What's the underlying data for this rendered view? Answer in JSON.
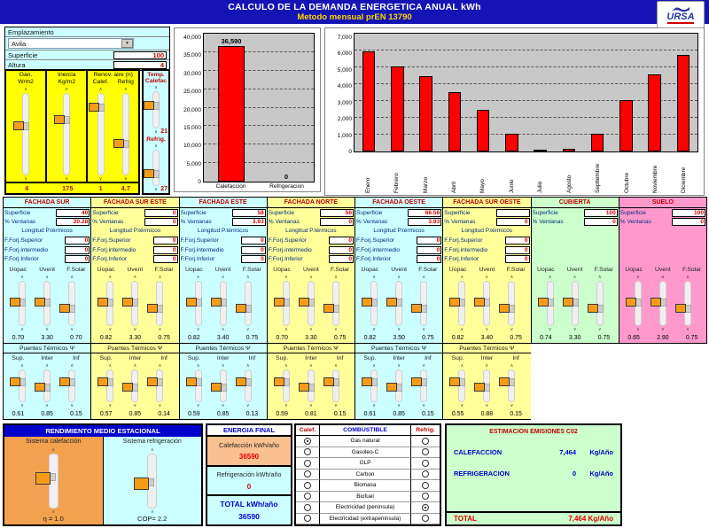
{
  "header": {
    "title": "CALCULO DE LA DEMANDA ENERGETICA ANUAL kWh",
    "subtitle": "Metodo mensual prEN 13790",
    "brand": "URSA"
  },
  "site": {
    "emplazamiento_label": "Emplazamiento",
    "emplazamiento_value": "Avila",
    "superficie_label": "Superficie",
    "superficie_value": "100",
    "altura_label": "Altura",
    "altura_value": "4"
  },
  "general_panel": {
    "col1_head": "Gan.",
    "col1_sub": "W/m2",
    "col1_value": "4",
    "col2_head": "Inercia",
    "col2_sub": "Kg/m2",
    "col2_value": "175",
    "renov_title": "Renov. aire (n)",
    "col3_head": "Calef.",
    "col3_value": "1",
    "col4_head": "Refrig",
    "col4_value": "4.7"
  },
  "temp_panel": {
    "title_line1": "Temp.",
    "title_line2": "Calefac",
    "calefac_value": "21",
    "refrig_label": "Refrig.",
    "refrig_value": "27"
  },
  "chart_data": [
    {
      "type": "bar",
      "categories": [
        "Calefaccion",
        "Refrigeracion"
      ],
      "values": [
        36590,
        0
      ],
      "bar_labels": [
        "36,590",
        "0"
      ],
      "ylim": [
        0,
        40000
      ],
      "yticks": [
        "0",
        "5,000",
        "10,000",
        "15,000",
        "20,000",
        "25,000",
        "30,000",
        "35,000",
        "40,000"
      ],
      "bar_color": "#FF0000",
      "plot_bg": "#C8C8C8",
      "grid": true,
      "legend": "none",
      "title": "",
      "xlabel": "",
      "ylabel": ""
    },
    {
      "type": "bar",
      "categories": [
        "Enero",
        "Febrero",
        "Marzo",
        "Abril",
        "Mayo",
        "Junio",
        "Julio",
        "Agosto",
        "Septiembre",
        "Octubre",
        "Noviembre",
        "Diciembre"
      ],
      "values": [
        5950,
        5050,
        4500,
        3550,
        2450,
        1050,
        100,
        170,
        1050,
        3050,
        4600,
        5750
      ],
      "ylim": [
        0,
        7000
      ],
      "yticks": [
        "0",
        "1,000",
        "2,000",
        "3,000",
        "4,000",
        "5,000",
        "6,000",
        "7,000"
      ],
      "bar_color": "#FF0000",
      "plot_bg": "#C8C8C8",
      "grid": true,
      "legend": "none",
      "title": "",
      "xlabel": "",
      "ylabel": ""
    }
  ],
  "facade_labels": {
    "superficie": "Superficie",
    "ventanas": "% Ventanas",
    "longitud": "Longitud P.térmicos",
    "forj": [
      "F.Forj.Superior",
      "F.Forj.intermedio",
      "F.Forj.Inferior"
    ],
    "u_cols": [
      "Uopac",
      "Uvent",
      "F.Solar"
    ],
    "puentes": "Puentes Térmicos Ψ",
    "pt_cols": [
      "Sup.",
      "Inter",
      "Inf"
    ]
  },
  "facades": [
    {
      "name": "FACHADA SUR",
      "color": "#CCFFFF",
      "superficie": "40",
      "ventanas": "20.28",
      "has_forj": true,
      "forj": [
        "0",
        "0",
        "0"
      ],
      "u_values": [
        "0.70",
        "3.30",
        "0.70"
      ],
      "has_pt": true,
      "pt_values": [
        "0.61",
        "0.85",
        "0.15"
      ]
    },
    {
      "name": "FACHADA SUR ESTE",
      "color": "#FFFF99",
      "superficie": "0",
      "ventanas": "0",
      "has_forj": true,
      "forj": [
        "0",
        "0",
        "0"
      ],
      "u_values": [
        "0.82",
        "3.30",
        "0.75"
      ],
      "has_pt": true,
      "pt_values": [
        "0.57",
        "0.85",
        "0.14"
      ]
    },
    {
      "name": "FACHADA ESTE",
      "color": "#CCFFFF",
      "superficie": "58",
      "ventanas": "3.93",
      "has_forj": true,
      "forj": [
        "0",
        "0",
        "0"
      ],
      "u_values": [
        "0.82",
        "3.40",
        "0.75"
      ],
      "has_pt": true,
      "pt_values": [
        "0.59",
        "0.85",
        "0.13"
      ]
    },
    {
      "name": "FACHADA NORTE",
      "color": "#FFFF99",
      "superficie": "56",
      "ventanas": "0",
      "has_forj": true,
      "forj": [
        "0",
        "0",
        "0"
      ],
      "u_values": [
        "0.70",
        "3.30",
        "0.75"
      ],
      "has_pt": true,
      "pt_values": [
        "0.59",
        "0.81",
        "0.15"
      ]
    },
    {
      "name": "FACHADA OESTE",
      "color": "#CCFFFF",
      "superficie": "66.56",
      "ventanas": "3.93",
      "has_forj": true,
      "forj": [
        "0",
        "0",
        "0"
      ],
      "u_values": [
        "0.82",
        "3.50",
        "0.75"
      ],
      "has_pt": true,
      "pt_values": [
        "0.61",
        "0.85",
        "0.15"
      ]
    },
    {
      "name": "FACHADA SUR OESTE",
      "color": "#FFFF99",
      "superficie": "",
      "ventanas": "0",
      "has_forj": true,
      "forj": [
        "0",
        "0",
        "0"
      ],
      "u_values": [
        "0.82",
        "3.40",
        "0.75"
      ],
      "has_pt": true,
      "pt_values": [
        "0.55",
        "0.88",
        "0.15"
      ]
    },
    {
      "name": "CUBIERTA",
      "color": "#CCFFCC",
      "superficie": "100",
      "ventanas": "0",
      "has_forj": false,
      "forj": [],
      "u_values": [
        "0.74",
        "3.30",
        "0.75"
      ],
      "has_pt": false,
      "pt_values": []
    },
    {
      "name": "SUELO",
      "color": "#FF99CC",
      "superficie": "100",
      "ventanas": "0",
      "has_forj": false,
      "forj": [],
      "u_values": [
        "0.65",
        "2.90",
        "0.75"
      ],
      "has_pt": false,
      "pt_values": []
    }
  ],
  "rendimiento": {
    "title": "RENDIMIENTO MEDIO ESTACIONAL",
    "calefaccion_label": "Sistema calefacción",
    "calefaccion_value": "η = 1.0",
    "refrigeracion_label": "Sistema refrigeración",
    "refrigeracion_value": "COP= 2.2"
  },
  "energia_final": {
    "title": "ENERGIA FINAL",
    "calefaccion_label": "Calefacción kWh/año",
    "calefaccion_value": "36590",
    "refrigeracion_label": "Refrigeración kWh/año",
    "refrigeracion_value": "0",
    "total_label": "TOTAL kWh/año",
    "total_value": "36590"
  },
  "combustible": {
    "calef_header": "Calef.",
    "title": "COMBUSTIBLE",
    "refrig_header": "Refrig.",
    "rows": [
      {
        "label": "Gas natural",
        "calef": true,
        "refrig": false
      },
      {
        "label": "Gasoleo-C",
        "calef": false,
        "refrig": false
      },
      {
        "label": "GLP",
        "calef": false,
        "refrig": false
      },
      {
        "label": "Carbon",
        "calef": false,
        "refrig": false
      },
      {
        "label": "Biomasa",
        "calef": false,
        "refrig": false
      },
      {
        "label": "Biofuel",
        "calef": false,
        "refrig": false
      },
      {
        "label": "Electricidad (peninsula)",
        "calef": false,
        "refrig": true
      },
      {
        "label": "Electricidad (extrapeninsula)",
        "calef": false,
        "refrig": false
      }
    ]
  },
  "emisiones": {
    "title": "ESTIMACION EMISIONES C02",
    "calefaccion_label": "CALEFACCION",
    "calefaccion_value": "7,464",
    "calefaccion_unit": "Kg/Año",
    "refrigeracion_label": "REFRIGERACION",
    "refrigeracion_value": "0",
    "refrigeracion_unit": "Kg/Año",
    "total_label": "TOTAL",
    "total_value": "7,464 Kg/Año"
  }
}
